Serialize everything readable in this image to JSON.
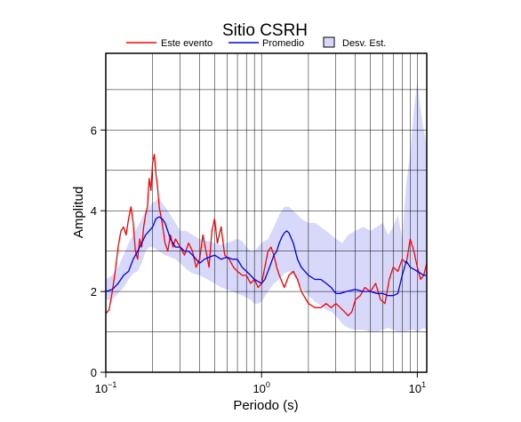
{
  "chart_data": {
    "type": "line",
    "title": "Sitio CSRH",
    "xlabel": "Periodo (s)",
    "ylabel": "Amplitud",
    "xscale": "log",
    "xlim": [
      0.1,
      11.5
    ],
    "ylim": [
      0,
      7.9
    ],
    "grid": true,
    "legend_position": "top",
    "x_ticks": [
      {
        "base": "10",
        "exp": "−1",
        "value": 0.1
      },
      {
        "base": "10",
        "exp": "0",
        "value": 1
      },
      {
        "base": "10",
        "exp": "1",
        "value": 10
      }
    ],
    "y_ticks": [
      {
        "label": "0",
        "value": 0
      },
      {
        "label": "2",
        "value": 2
      },
      {
        "label": "4",
        "value": 4
      },
      {
        "label": "6",
        "value": 6
      }
    ],
    "legend": [
      {
        "name": "Este evento",
        "kind": "line",
        "color": "#ff0000"
      },
      {
        "name": "Promedio",
        "kind": "line",
        "color": "#0000e6"
      },
      {
        "name": "Desv. Est.",
        "kind": "box",
        "color": "#d8d8fa"
      }
    ],
    "band": {
      "name": "Desv. Est.",
      "x": [
        0.1,
        0.11,
        0.12,
        0.13,
        0.14,
        0.15,
        0.16,
        0.17,
        0.18,
        0.19,
        0.2,
        0.22,
        0.24,
        0.26,
        0.28,
        0.3,
        0.33,
        0.36,
        0.4,
        0.45,
        0.5,
        0.55,
        0.6,
        0.65,
        0.7,
        0.75,
        0.8,
        0.85,
        0.9,
        0.95,
        1.0,
        1.1,
        1.2,
        1.3,
        1.4,
        1.5,
        1.6,
        1.7,
        1.8,
        2.0,
        2.2,
        2.4,
        2.6,
        2.8,
        3.0,
        3.3,
        3.6,
        4.0,
        4.5,
        5.0,
        5.5,
        6.0,
        6.5,
        7.0,
        7.5,
        8.0,
        8.5,
        9.0,
        9.5,
        10.0,
        10.5,
        11.0,
        11.5
      ],
      "lower": [
        1.8,
        1.8,
        1.95,
        2.1,
        2.3,
        2.45,
        2.5,
        2.7,
        3.0,
        3.1,
        3.1,
        3.0,
        2.9,
        2.85,
        2.8,
        2.7,
        2.55,
        2.45,
        2.4,
        2.3,
        2.2,
        2.1,
        2.05,
        2.0,
        1.95,
        1.9,
        1.85,
        1.8,
        1.7,
        1.7,
        1.75,
        2.0,
        2.2,
        2.3,
        2.45,
        2.5,
        2.4,
        2.25,
        2.1,
        1.9,
        1.75,
        1.65,
        1.55,
        1.5,
        1.4,
        1.2,
        1.1,
        1.05,
        1.05,
        1.0,
        1.0,
        1.05,
        1.1,
        1.05,
        1.0,
        1.0,
        1.0,
        1.05,
        1.05,
        1.0,
        1.05,
        1.1,
        1.05
      ],
      "upper": [
        2.3,
        2.4,
        2.6,
        2.9,
        3.2,
        3.4,
        3.6,
        3.8,
        4.0,
        4.1,
        4.2,
        4.3,
        4.1,
        3.9,
        3.7,
        3.5,
        3.5,
        3.4,
        3.3,
        3.25,
        3.2,
        3.15,
        3.2,
        3.25,
        3.3,
        3.25,
        3.1,
        3.0,
        3.0,
        3.1,
        3.2,
        3.3,
        3.6,
        3.9,
        4.1,
        4.1,
        4.0,
        3.9,
        3.8,
        3.7,
        3.7,
        3.6,
        3.5,
        3.4,
        3.3,
        3.2,
        3.4,
        3.5,
        3.6,
        3.5,
        3.6,
        3.7,
        3.4,
        3.6,
        3.9,
        3.3,
        4.7,
        5.4,
        6.5,
        7.2,
        6.5,
        6.0,
        5.6
      ]
    },
    "series": [
      {
        "name": "Este evento",
        "color": "#ff0000",
        "x": [
          0.1,
          0.105,
          0.11,
          0.115,
          0.12,
          0.125,
          0.13,
          0.135,
          0.14,
          0.145,
          0.15,
          0.155,
          0.16,
          0.165,
          0.17,
          0.175,
          0.18,
          0.185,
          0.19,
          0.195,
          0.2,
          0.205,
          0.21,
          0.215,
          0.22,
          0.23,
          0.24,
          0.25,
          0.26,
          0.27,
          0.28,
          0.3,
          0.32,
          0.34,
          0.36,
          0.38,
          0.4,
          0.42,
          0.44,
          0.46,
          0.48,
          0.5,
          0.52,
          0.55,
          0.58,
          0.62,
          0.66,
          0.7,
          0.75,
          0.8,
          0.85,
          0.9,
          0.95,
          1.0,
          1.05,
          1.1,
          1.15,
          1.2,
          1.25,
          1.3,
          1.4,
          1.5,
          1.6,
          1.7,
          1.8,
          2.0,
          2.2,
          2.4,
          2.6,
          2.8,
          3.0,
          3.2,
          3.4,
          3.6,
          3.8,
          4.0,
          4.3,
          4.6,
          5.0,
          5.4,
          5.8,
          6.2,
          6.6,
          7.0,
          7.5,
          8.0,
          8.5,
          9.0,
          9.5,
          10.0,
          10.5,
          11.0,
          11.5
        ],
        "values": [
          1.45,
          1.55,
          2.0,
          2.5,
          3.1,
          3.5,
          3.6,
          3.4,
          3.8,
          4.1,
          3.7,
          3.0,
          2.8,
          3.3,
          3.1,
          3.6,
          3.9,
          4.1,
          4.8,
          4.5,
          5.2,
          5.4,
          4.9,
          4.6,
          4.1,
          3.7,
          3.2,
          3.0,
          3.4,
          3.1,
          3.3,
          3.1,
          2.9,
          3.2,
          3.0,
          2.6,
          2.8,
          3.4,
          3.0,
          2.6,
          3.5,
          3.8,
          3.2,
          3.6,
          2.9,
          2.8,
          2.6,
          2.5,
          2.4,
          2.4,
          2.2,
          2.3,
          2.1,
          2.2,
          2.6,
          3.0,
          3.1,
          2.9,
          2.6,
          2.4,
          2.1,
          2.4,
          2.5,
          2.3,
          2.0,
          1.7,
          1.6,
          1.6,
          1.7,
          1.6,
          1.7,
          1.6,
          1.5,
          1.4,
          1.5,
          1.8,
          1.9,
          2.1,
          2.0,
          2.2,
          1.8,
          1.7,
          2.3,
          2.6,
          2.5,
          2.8,
          2.7,
          3.3,
          3.0,
          2.6,
          2.3,
          2.4,
          2.7
        ]
      },
      {
        "name": "Promedio",
        "color": "#0000e6",
        "x": [
          0.1,
          0.11,
          0.12,
          0.13,
          0.14,
          0.15,
          0.16,
          0.17,
          0.18,
          0.19,
          0.2,
          0.21,
          0.22,
          0.23,
          0.24,
          0.25,
          0.26,
          0.28,
          0.3,
          0.32,
          0.34,
          0.36,
          0.38,
          0.4,
          0.43,
          0.46,
          0.5,
          0.55,
          0.6,
          0.65,
          0.7,
          0.75,
          0.8,
          0.85,
          0.9,
          0.95,
          1.0,
          1.05,
          1.1,
          1.15,
          1.2,
          1.25,
          1.3,
          1.35,
          1.4,
          1.45,
          1.5,
          1.6,
          1.7,
          1.8,
          2.0,
          2.2,
          2.4,
          2.6,
          2.8,
          3.0,
          3.2,
          3.5,
          4.0,
          4.5,
          5.0,
          5.5,
          6.0,
          6.5,
          7.0,
          7.5,
          8.0,
          8.5,
          9.0,
          9.5,
          10.0,
          10.5,
          11.0,
          11.5
        ],
        "values": [
          2.0,
          2.05,
          2.2,
          2.4,
          2.5,
          2.8,
          3.0,
          3.2,
          3.4,
          3.5,
          3.6,
          3.8,
          3.85,
          3.8,
          3.7,
          3.5,
          3.3,
          3.1,
          3.1,
          3.0,
          3.0,
          2.9,
          2.8,
          2.7,
          2.8,
          2.85,
          2.9,
          2.8,
          2.85,
          2.8,
          2.8,
          2.6,
          2.5,
          2.4,
          2.3,
          2.25,
          2.2,
          2.3,
          2.5,
          2.7,
          2.9,
          3.0,
          3.2,
          3.35,
          3.45,
          3.5,
          3.45,
          3.2,
          2.8,
          2.6,
          2.4,
          2.3,
          2.3,
          2.2,
          2.1,
          1.95,
          1.95,
          2.0,
          2.05,
          2.0,
          2.0,
          1.95,
          1.95,
          1.9,
          1.9,
          1.95,
          2.4,
          2.75,
          2.6,
          2.55,
          2.5,
          2.45,
          2.4,
          2.4
        ]
      }
    ]
  }
}
